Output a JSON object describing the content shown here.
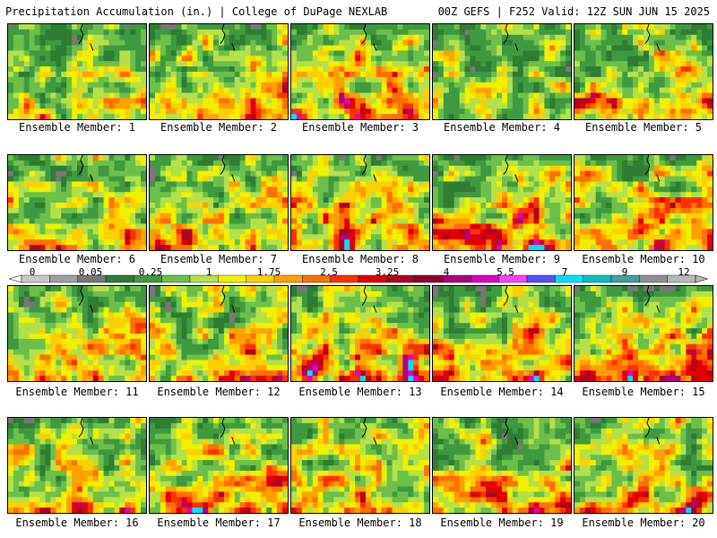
{
  "header": {
    "title": "Precipitation Accumulation (in.) | College of DuPage NEXLAB",
    "run_info": "00Z GEFS | F252 Valid: 12Z SUN JUN 15 2025"
  },
  "colors": {
    "scale": [
      "#c8c8c8",
      "#a0a0a0",
      "#787878",
      "#2e7d32",
      "#3f9a3f",
      "#6cc04a",
      "#b4e04a",
      "#f0f000",
      "#ffd000",
      "#ffa000",
      "#ff7000",
      "#ff3000",
      "#e00000",
      "#b00020",
      "#8c0030",
      "#b0007a",
      "#e000c0",
      "#ff40ff",
      "#5050ff",
      "#00e0ff",
      "#00c0c0",
      "#40a0a0",
      "#909090",
      "#b8b8b8"
    ]
  },
  "colorbar": {
    "ticks": [
      "0",
      "0.05",
      "0.25",
      "1",
      "1.75",
      "2.5",
      "3.25",
      "4",
      "5.5",
      "7",
      "9",
      "12"
    ]
  },
  "panels": [
    {
      "label": "Ensemble Member: 1",
      "intensity": 0.45
    },
    {
      "label": "Ensemble Member: 2",
      "intensity": 0.6
    },
    {
      "label": "Ensemble Member: 3",
      "intensity": 0.65
    },
    {
      "label": "Ensemble Member: 4",
      "intensity": 0.3
    },
    {
      "label": "Ensemble Member: 5",
      "intensity": 0.55
    },
    {
      "label": "Ensemble Member: 6",
      "intensity": 0.45
    },
    {
      "label": "Ensemble Member: 7",
      "intensity": 0.55
    },
    {
      "label": "Ensemble Member: 8",
      "intensity": 0.6
    },
    {
      "label": "Ensemble Member: 9",
      "intensity": 0.7
    },
    {
      "label": "Ensemble Member: 10",
      "intensity": 0.65
    },
    {
      "label": "Ensemble Member: 11",
      "intensity": 0.5
    },
    {
      "label": "Ensemble Member: 12",
      "intensity": 0.55
    },
    {
      "label": "Ensemble Member: 13",
      "intensity": 0.65
    },
    {
      "label": "Ensemble Member: 14",
      "intensity": 0.6
    },
    {
      "label": "Ensemble Member: 15",
      "intensity": 0.7
    },
    {
      "label": "Ensemble Member: 16",
      "intensity": 0.55
    },
    {
      "label": "Ensemble Member: 17",
      "intensity": 0.65
    },
    {
      "label": "Ensemble Member: 18",
      "intensity": 0.65
    },
    {
      "label": "Ensemble Member: 19",
      "intensity": 0.6
    },
    {
      "label": "Ensemble Member: 20",
      "intensity": 0.6
    }
  ]
}
